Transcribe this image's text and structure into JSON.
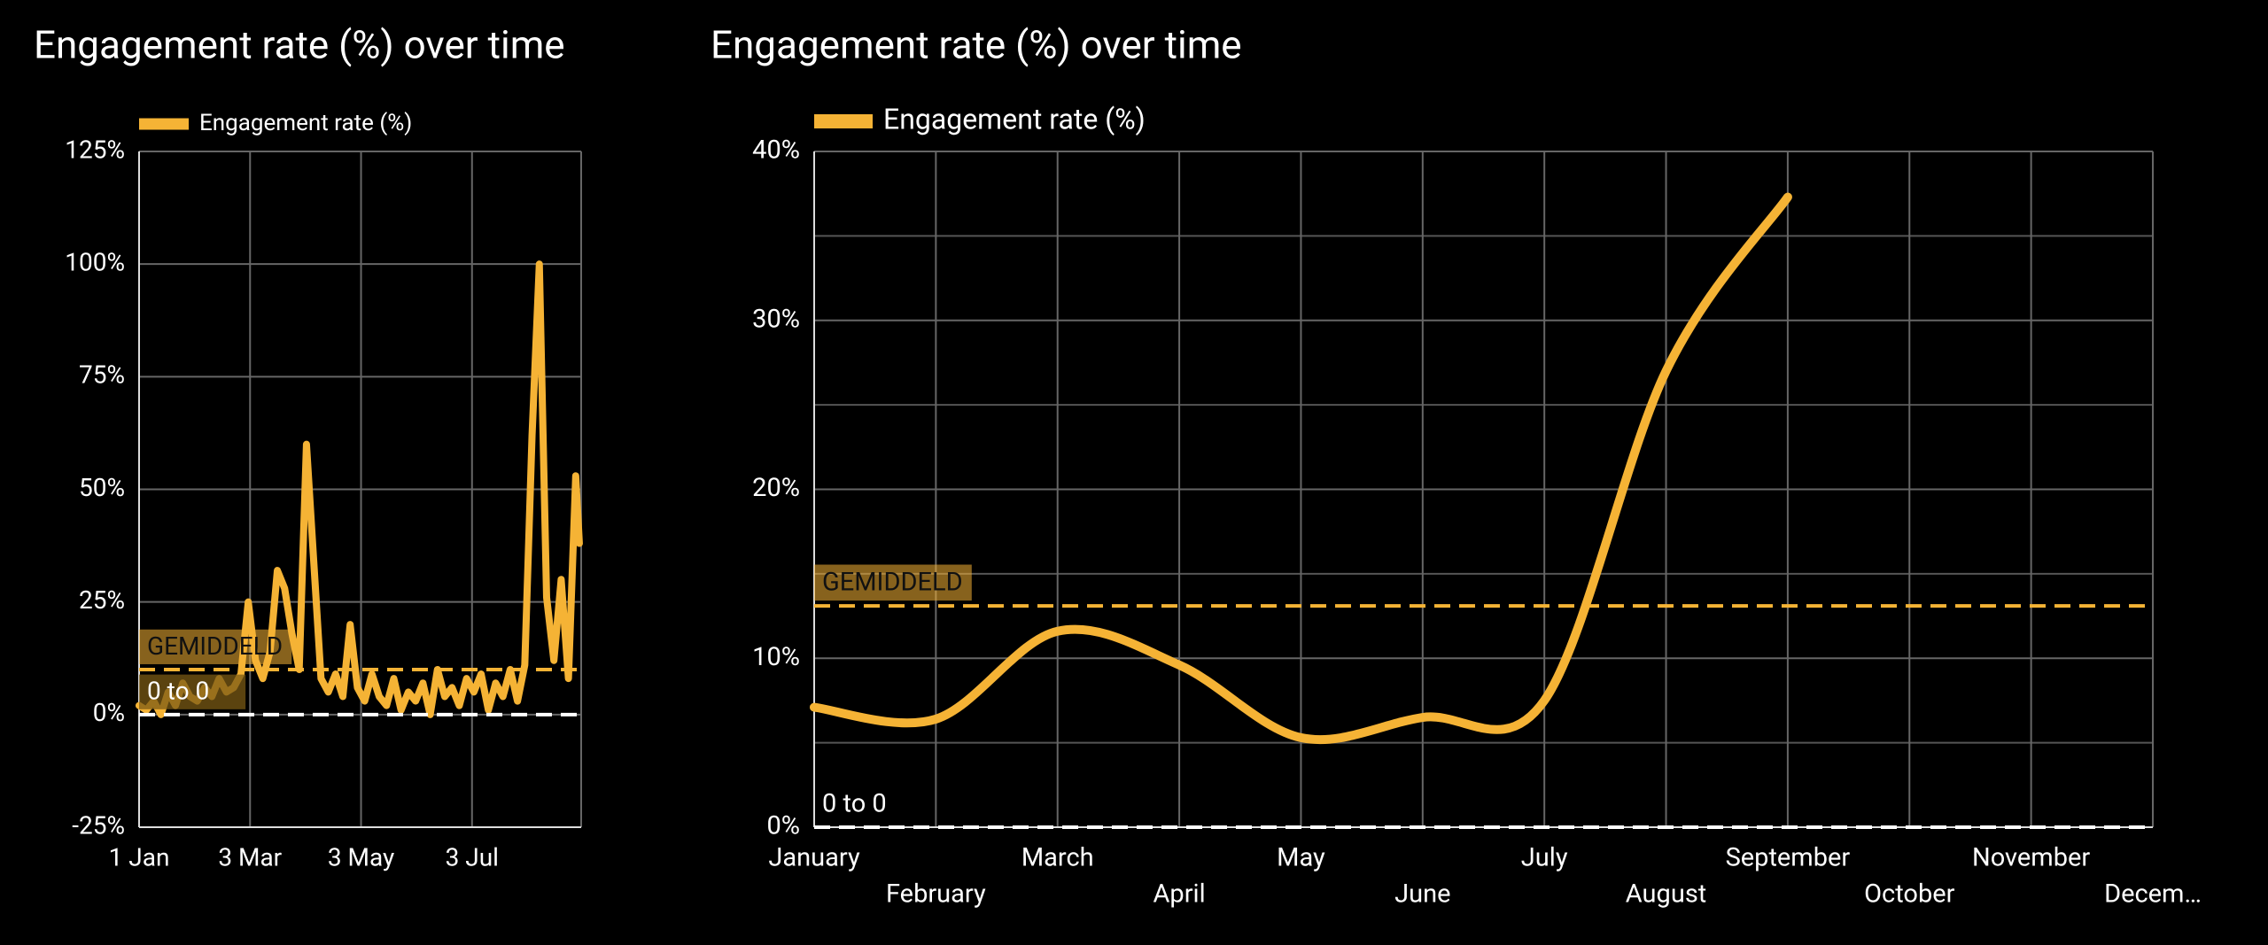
{
  "chart_data": [
    {
      "type": "line",
      "title": "Engagement rate (%) over time",
      "x": [
        0,
        4,
        8,
        12,
        16,
        20,
        24,
        28,
        32,
        36,
        40,
        44,
        48,
        52,
        56,
        60,
        64,
        68,
        72,
        76,
        80,
        84,
        88,
        92,
        96,
        100,
        104,
        108,
        112,
        116,
        120,
        124,
        128,
        132,
        136,
        140,
        144,
        148,
        152,
        156,
        160,
        164,
        168,
        172,
        176,
        180,
        184,
        188,
        192,
        196,
        200,
        204,
        208,
        212,
        216,
        220,
        224,
        228,
        232,
        236,
        240,
        242
      ],
      "series": [
        {
          "name": "Engagement rate (%)",
          "color": "#f5b335",
          "values": [
            2,
            1,
            3,
            0,
            5,
            2,
            7,
            4,
            3,
            6,
            4,
            8,
            5,
            6,
            9,
            25,
            12,
            8,
            14,
            32,
            28,
            18,
            10,
            60,
            34,
            8,
            5,
            9,
            4,
            20,
            6,
            3,
            9,
            4,
            2,
            8,
            1,
            5,
            3,
            7,
            0,
            10,
            4,
            6,
            2,
            8,
            5,
            9,
            1,
            7,
            4,
            10,
            3,
            11,
            62,
            100,
            26,
            12,
            30,
            8,
            53,
            38
          ]
        }
      ],
      "xlim": [
        0,
        243
      ],
      "xticks": [
        {
          "value": 0,
          "label": "1 Jan"
        },
        {
          "value": 61,
          "label": "3 Mar"
        },
        {
          "value": 122,
          "label": "3 May"
        },
        {
          "value": 183,
          "label": "3 Jul"
        }
      ],
      "ylim": [
        -25,
        125
      ],
      "yticks": [
        {
          "value": -25,
          "label": "-25%"
        },
        {
          "value": 0,
          "label": "0%"
        },
        {
          "value": 25,
          "label": "25%"
        },
        {
          "value": 50,
          "label": "50%"
        },
        {
          "value": 75,
          "label": "75%"
        },
        {
          "value": 100,
          "label": "100%"
        },
        {
          "value": 125,
          "label": "125%"
        }
      ],
      "grid": true,
      "reference_lines": [
        {
          "label": "GEMIDDELD",
          "value": 10,
          "color": "#f5b335"
        },
        {
          "label": "0 to 0",
          "value": 0,
          "color": "#ffffff"
        }
      ]
    },
    {
      "type": "smooth-line",
      "title": "Engagement rate (%) over time",
      "categories": [
        "January",
        "February",
        "March",
        "April",
        "May",
        "June",
        "July",
        "August",
        "September",
        "October",
        "November",
        "Decem…"
      ],
      "series": [
        {
          "name": "Engagement rate (%)",
          "color": "#f5b335",
          "values": [
            7.1,
            6.4,
            11.6,
            9.6,
            5.3,
            6.5,
            7.5,
            27,
            37.3,
            null,
            null,
            null
          ]
        }
      ],
      "ylim": [
        0,
        40
      ],
      "yticks": [
        {
          "value": 0,
          "label": "0%"
        },
        {
          "value": 10,
          "label": "10%"
        },
        {
          "value": 20,
          "label": "20%"
        },
        {
          "value": 30,
          "label": "30%"
        },
        {
          "value": 40,
          "label": "40%"
        }
      ],
      "minor_yticks": [
        5,
        15,
        25,
        35
      ],
      "grid": true,
      "reference_lines": [
        {
          "label": "GEMIDDELD",
          "value": 13.1,
          "color": "#f5b335"
        },
        {
          "label": "0 to 0",
          "value": 0,
          "color": "#ffffff"
        }
      ]
    }
  ]
}
